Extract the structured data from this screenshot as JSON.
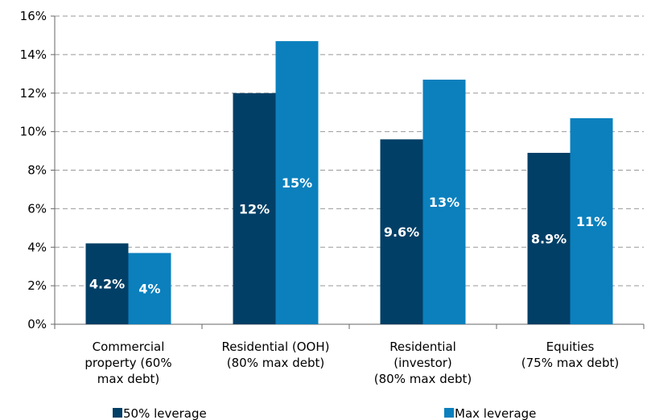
{
  "chart_data": {
    "type": "bar",
    "categories": [
      "Commercial\nproperty (60%\nmax debt)",
      "Residential (OOH)\n(80% max debt)",
      "Residential\n(investor)\n(80% max debt)",
      "Equities\n(75% max debt)"
    ],
    "series": [
      {
        "name": "50% leverage",
        "color": "#023f66",
        "values": [
          4.2,
          12,
          9.6,
          8.9
        ],
        "value_labels": [
          "4.2%",
          "12%",
          "9.6%",
          "8.9%"
        ]
      },
      {
        "name": "Max leverage",
        "color": "#0b80bd",
        "values": [
          3.7,
          14.7,
          12.7,
          10.7
        ],
        "value_labels": [
          "4%",
          "15%",
          "13%",
          "11%"
        ]
      }
    ],
    "ylim": [
      0,
      16
    ],
    "yticks": [
      {
        "value": 0,
        "label": "0%"
      },
      {
        "value": 2,
        "label": "2%"
      },
      {
        "value": 4,
        "label": "4%"
      },
      {
        "value": 6,
        "label": "6%"
      },
      {
        "value": 8,
        "label": "8%"
      },
      {
        "value": 10,
        "label": "10%"
      },
      {
        "value": 12,
        "label": "12%"
      },
      {
        "value": 14,
        "label": "14%"
      },
      {
        "value": 16,
        "label": "16%"
      }
    ],
    "grid": true,
    "legend": "bottom"
  }
}
